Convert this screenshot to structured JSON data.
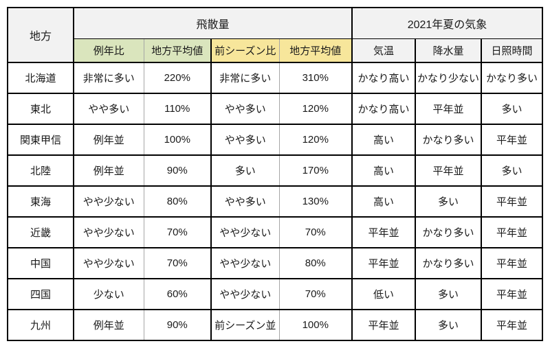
{
  "colors": {
    "header_gray_bg": "#F2F2F2",
    "ratio_green_bg": "#DAE5BD",
    "season_yellow_bg": "#F7E69B",
    "border_black": "#000000",
    "border_thin_gray": "#A6A6A6",
    "text": "#1A1A1A",
    "cell_white_bg": "#FFFFFF"
  },
  "chart_data": {
    "type": "table",
    "column_groups": [
      {
        "label": "地方",
        "span": 1
      },
      {
        "label": "飛散量",
        "span": 4
      },
      {
        "label": "2021年夏の気象",
        "span": 3
      }
    ],
    "sub_columns": [
      "例年比",
      "地方平均値",
      "前シーズン比",
      "地方平均値",
      "気温",
      "降水量",
      "日照時間"
    ],
    "rows": [
      {
        "region": "北海道",
        "values": [
          "非常に多い",
          "220%",
          "非常に多い",
          "310%",
          "かなり高い",
          "かなり少ない",
          "かなり多い"
        ]
      },
      {
        "region": "東北",
        "values": [
          "やや多い",
          "110%",
          "やや多い",
          "120%",
          "かなり高い",
          "平年並",
          "多い"
        ]
      },
      {
        "region": "関東甲信",
        "values": [
          "例年並",
          "100%",
          "やや多い",
          "120%",
          "高い",
          "かなり多い",
          "平年並"
        ]
      },
      {
        "region": "北陸",
        "values": [
          "例年並",
          "90%",
          "多い",
          "170%",
          "高い",
          "平年並",
          "多い"
        ]
      },
      {
        "region": "東海",
        "values": [
          "やや少ない",
          "80%",
          "やや多い",
          "130%",
          "高い",
          "多い",
          "平年並"
        ]
      },
      {
        "region": "近畿",
        "values": [
          "やや少ない",
          "70%",
          "やや少ない",
          "70%",
          "平年並",
          "かなり多い",
          "平年並"
        ]
      },
      {
        "region": "中国",
        "values": [
          "やや少ない",
          "70%",
          "やや少ない",
          "80%",
          "平年並",
          "かなり多い",
          "平年並"
        ]
      },
      {
        "region": "四国",
        "values": [
          "少ない",
          "60%",
          "やや少ない",
          "70%",
          "低い",
          "多い",
          "平年並"
        ]
      },
      {
        "region": "九州",
        "values": [
          "例年並",
          "90%",
          "前シーズン並",
          "100%",
          "平年並",
          "多い",
          "平年並"
        ]
      }
    ]
  }
}
